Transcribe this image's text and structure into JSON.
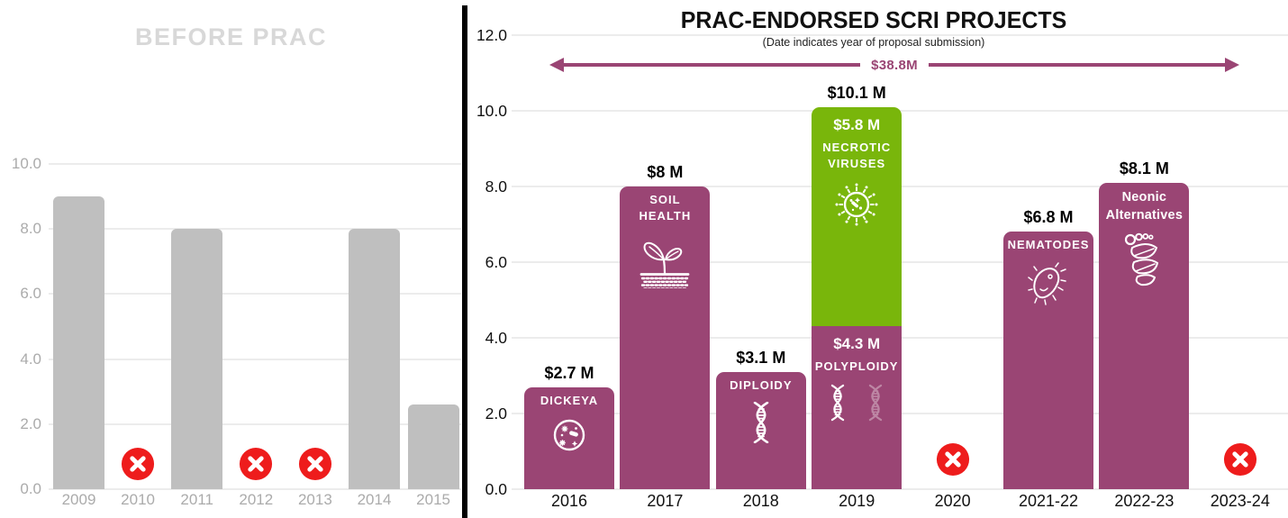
{
  "colors": {
    "purple": "#9A4574",
    "green": "#79B60B",
    "red": "#EE1C1C",
    "gray_bar": "#BFBFBF",
    "faded_title": "#D8D8D8",
    "axis_gray": "#ABABAB",
    "gridline": "#ECECEC",
    "black": "#111111",
    "white": "#FFFFFF"
  },
  "chart_data": [
    {
      "id": "before-prac",
      "type": "bar",
      "title": "BEFORE PRAC",
      "xlabel": "",
      "ylabel": "",
      "ylim": [
        0,
        10
      ],
      "grid": true,
      "y_tick_labels": [
        "10.0",
        "8.0",
        "6.0",
        "4.0",
        "2.0",
        "0.0"
      ],
      "categories": [
        "2009",
        "2010",
        "2011",
        "2012",
        "2013",
        "2014",
        "2015"
      ],
      "values": [
        9.0,
        null,
        8.0,
        null,
        null,
        8.0,
        2.6
      ],
      "no_award_years": [
        "2010",
        "2012",
        "2013"
      ],
      "no_award_marker": "x-circle-icon",
      "bar_color": "#BFBFBF"
    },
    {
      "id": "prac-endorsed-scri-projects",
      "type": "bar-stacked",
      "title": "PRAC-ENDORSED SCRI PROJECTS",
      "subtitle": "(Date indicates year of proposal submission)",
      "total_label": "$38.8M",
      "xlabel": "",
      "ylabel": "",
      "ylim": [
        0,
        12
      ],
      "grid": true,
      "y_tick_labels": [
        "12.0",
        "10.0",
        "8.0",
        "6.0",
        "4.0",
        "2.0",
        "0.0"
      ],
      "categories": [
        "2016",
        "2017",
        "2018",
        "2019",
        "2020",
        "2021-22",
        "2022-23",
        "2023-24"
      ],
      "bars": [
        {
          "category": "2016",
          "value_label": "$2.7 M",
          "total": 2.7,
          "segments": [
            {
              "value": 2.7,
              "project": "DICKEYA",
              "icon": "petri-dish-icon",
              "color": "#9A4574"
            }
          ]
        },
        {
          "category": "2017",
          "value_label": "$8 M",
          "total": 8,
          "segments": [
            {
              "value": 8,
              "project": "SOIL HEALTH",
              "icon": "sprout-soil-icon",
              "color": "#9A4574"
            }
          ]
        },
        {
          "category": "2018",
          "value_label": "$3.1 M",
          "total": 3.1,
          "segments": [
            {
              "value": 3.1,
              "project": "DIPLOIDY",
              "icon": "dna-icon",
              "color": "#9A4574"
            }
          ]
        },
        {
          "category": "2019",
          "value_label": "$10.1 M",
          "total": 10.1,
          "segments": [
            {
              "value": 4.3,
              "amount_label": "$4.3 M",
              "project": "POLYPLOIDY",
              "icon": "dna-double-icon",
              "color": "#9A4574"
            },
            {
              "value": 5.8,
              "amount_label": "$5.8 M",
              "project": "NECROTIC VIRUSES",
              "icon": "virus-icon",
              "color": "#79B60B"
            }
          ]
        },
        {
          "category": "2020",
          "rejected": true,
          "icon": "x-circle-icon"
        },
        {
          "category": "2021-22",
          "value_label": "$6.8 M",
          "total": 6.8,
          "segments": [
            {
              "value": 6.8,
              "project": "NEMATODES",
              "icon": "nematode-icon",
              "color": "#9A4574"
            }
          ]
        },
        {
          "category": "2022-23",
          "value_label": "$8.1 M",
          "total": 8.1,
          "segments": [
            {
              "value": 8.1,
              "project": "Neonic Alternatives",
              "icon": "hops-leaf-icon",
              "color": "#9A4574"
            }
          ]
        },
        {
          "category": "2023-24",
          "rejected": true,
          "icon": "x-circle-icon"
        }
      ]
    }
  ]
}
